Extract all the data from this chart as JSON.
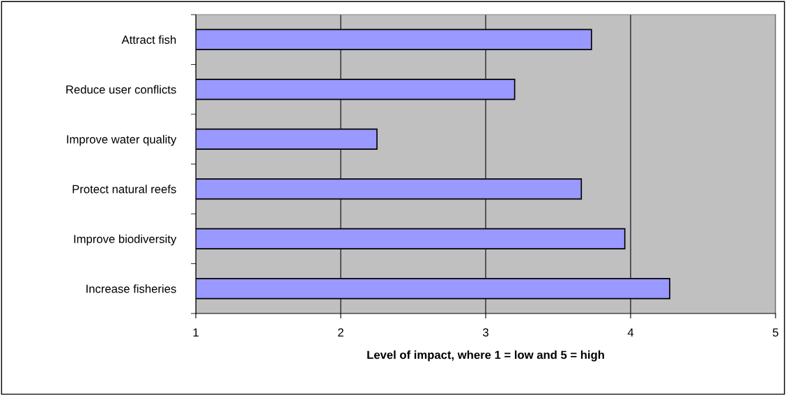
{
  "chart_data": {
    "type": "bar",
    "orientation": "horizontal",
    "xlabel": "Level of impact, where 1 = low and 5 = high",
    "categories": [
      "Attract fish",
      "Reduce user conflicts",
      "Improve water quality",
      "Protect natural reefs",
      "Improve biodiversity",
      "Increase fisheries"
    ],
    "values": [
      3.73,
      3.2,
      2.25,
      3.66,
      3.96,
      4.27
    ],
    "color": "#9999ff",
    "xlim": [
      1,
      5
    ],
    "xticks": [
      1,
      2,
      3,
      4,
      5
    ],
    "grid": "x"
  }
}
